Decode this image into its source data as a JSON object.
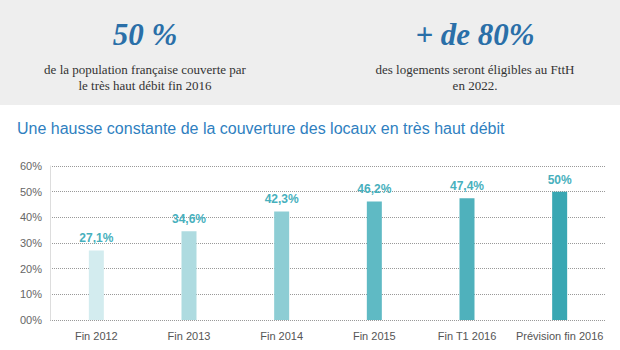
{
  "annotations": [
    {
      "headline": "50 %",
      "lines": [
        "de la population française couverte par",
        "le très haut débit fin 2016"
      ]
    },
    {
      "headline": "+ de 80%",
      "lines": [
        "des logements seront éligibles au FttH",
        "en 2022."
      ]
    }
  ],
  "chart_data": {
    "type": "bar",
    "title": "Une hausse constante de la couverture des locaux en très haut débit",
    "categories": [
      "Fin 2012",
      "Fin 2013",
      "Fin 2014",
      "Fin 2015",
      "Fin T1 2016",
      "Prévision fin 2016"
    ],
    "values": [
      27.1,
      34.6,
      42.3,
      46.2,
      47.4,
      50
    ],
    "value_labels": [
      "27,1%",
      "34,6%",
      "42,3%",
      "46,2%",
      "47,4%",
      "50%"
    ],
    "colors": [
      "#d3ecef",
      "#aedbe0",
      "#8dcdd4",
      "#5fbac4",
      "#4fb1bc",
      "#39a7b3"
    ],
    "ylim": [
      0,
      60
    ],
    "yticks": [
      {
        "value": 0,
        "label": "00%"
      },
      {
        "value": 10,
        "label": "10%"
      },
      {
        "value": 20,
        "label": "20%"
      },
      {
        "value": 30,
        "label": "30%"
      },
      {
        "value": 40,
        "label": "40%"
      },
      {
        "value": 50,
        "label": "50%"
      },
      {
        "value": 60,
        "label": "60%"
      }
    ],
    "grid": true,
    "data_labels": true
  }
}
